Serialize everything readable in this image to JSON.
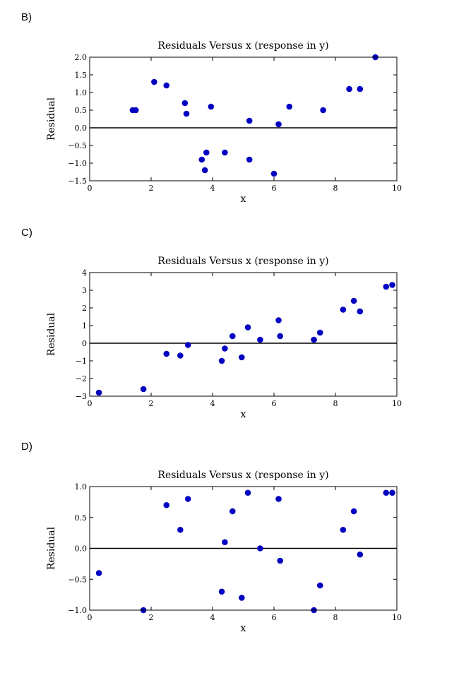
{
  "options": {
    "b": "B)",
    "c": "C)",
    "d": "D)"
  },
  "chart_data": [
    {
      "type": "scatter",
      "title": "Residuals Versus x (response in y)",
      "xlabel": "x",
      "ylabel": "Residual",
      "xlim": [
        0,
        10
      ],
      "ylim": [
        -1.5,
        2.0
      ],
      "xticks": [
        0,
        2,
        4,
        6,
        8,
        10
      ],
      "yticks": [
        -1.5,
        -1.0,
        -0.5,
        0.0,
        0.5,
        1.0,
        1.5,
        2.0
      ],
      "ytick_labels": [
        "−1.5",
        "−1.0",
        "−0.5",
        "0.0",
        "0.5",
        "1.0",
        "1.5",
        "2.0"
      ],
      "reference_line_y": 0,
      "grid": false,
      "marker_color": "#0000c0",
      "points": [
        {
          "x": 1.4,
          "y": 0.5
        },
        {
          "x": 1.5,
          "y": 0.5
        },
        {
          "x": 2.1,
          "y": 1.3
        },
        {
          "x": 2.5,
          "y": 1.2
        },
        {
          "x": 3.1,
          "y": 0.7
        },
        {
          "x": 3.15,
          "y": 0.4
        },
        {
          "x": 3.95,
          "y": 0.6
        },
        {
          "x": 3.65,
          "y": -0.9
        },
        {
          "x": 3.75,
          "y": -1.2
        },
        {
          "x": 3.8,
          "y": -0.7
        },
        {
          "x": 4.4,
          "y": -0.7
        },
        {
          "x": 5.2,
          "y": 0.2
        },
        {
          "x": 5.2,
          "y": -0.9
        },
        {
          "x": 6.0,
          "y": -1.3
        },
        {
          "x": 6.15,
          "y": 0.1
        },
        {
          "x": 6.5,
          "y": 0.6
        },
        {
          "x": 7.6,
          "y": 0.5
        },
        {
          "x": 8.45,
          "y": 1.1
        },
        {
          "x": 8.8,
          "y": 1.1
        },
        {
          "x": 9.3,
          "y": 2.0
        }
      ]
    },
    {
      "type": "scatter",
      "title": "Residuals Versus x (response in y)",
      "xlabel": "x",
      "ylabel": "Residual",
      "xlim": [
        0,
        10
      ],
      "ylim": [
        -3,
        4
      ],
      "xticks": [
        0,
        2,
        4,
        6,
        8,
        10
      ],
      "yticks": [
        -3,
        -2,
        -1,
        0,
        1,
        2,
        3,
        4
      ],
      "ytick_labels": [
        "−3",
        "−2",
        "−1",
        "0",
        "1",
        "2",
        "3",
        "4"
      ],
      "reference_line_y": 0,
      "grid": false,
      "marker_color": "#0000c0",
      "points": [
        {
          "x": 0.3,
          "y": -2.8
        },
        {
          "x": 1.75,
          "y": -2.6
        },
        {
          "x": 2.5,
          "y": -0.6
        },
        {
          "x": 2.95,
          "y": -0.7
        },
        {
          "x": 3.2,
          "y": -0.1
        },
        {
          "x": 4.3,
          "y": -1.0
        },
        {
          "x": 4.4,
          "y": -0.3
        },
        {
          "x": 4.65,
          "y": 0.4
        },
        {
          "x": 4.95,
          "y": -0.8
        },
        {
          "x": 5.15,
          "y": 0.9
        },
        {
          "x": 5.55,
          "y": 0.2
        },
        {
          "x": 6.15,
          "y": 1.3
        },
        {
          "x": 6.2,
          "y": 0.4
        },
        {
          "x": 7.3,
          "y": 0.2
        },
        {
          "x": 7.5,
          "y": 0.6
        },
        {
          "x": 8.25,
          "y": 1.9
        },
        {
          "x": 8.6,
          "y": 2.4
        },
        {
          "x": 8.8,
          "y": 1.8
        },
        {
          "x": 9.65,
          "y": 3.2
        },
        {
          "x": 9.85,
          "y": 3.3
        }
      ]
    },
    {
      "type": "scatter",
      "title": "Residuals Versus x (response in y)",
      "xlabel": "x",
      "ylabel": "Residual",
      "xlim": [
        0,
        10
      ],
      "ylim": [
        -1.0,
        1.0
      ],
      "xticks": [
        0,
        2,
        4,
        6,
        8,
        10
      ],
      "yticks": [
        -1.0,
        -0.5,
        0.0,
        0.5,
        1.0
      ],
      "ytick_labels": [
        "−1.0",
        "−0.5",
        "0.0",
        "0.5",
        "1.0"
      ],
      "reference_line_y": 0,
      "grid": false,
      "marker_color": "#0000c0",
      "points": [
        {
          "x": 0.3,
          "y": -0.4
        },
        {
          "x": 1.75,
          "y": -1.0
        },
        {
          "x": 2.5,
          "y": 0.7
        },
        {
          "x": 2.95,
          "y": 0.3
        },
        {
          "x": 3.2,
          "y": 0.8
        },
        {
          "x": 4.3,
          "y": -0.7
        },
        {
          "x": 4.4,
          "y": 0.1
        },
        {
          "x": 4.65,
          "y": 0.6
        },
        {
          "x": 4.95,
          "y": -0.8
        },
        {
          "x": 5.15,
          "y": 0.9
        },
        {
          "x": 5.55,
          "y": 0.0
        },
        {
          "x": 6.15,
          "y": 0.8
        },
        {
          "x": 6.2,
          "y": -0.2
        },
        {
          "x": 7.3,
          "y": -1.0
        },
        {
          "x": 7.5,
          "y": -0.6
        },
        {
          "x": 8.25,
          "y": 0.3
        },
        {
          "x": 8.6,
          "y": 0.6
        },
        {
          "x": 8.8,
          "y": -0.1
        },
        {
          "x": 9.65,
          "y": 0.9
        },
        {
          "x": 9.85,
          "y": 0.9
        }
      ]
    }
  ]
}
